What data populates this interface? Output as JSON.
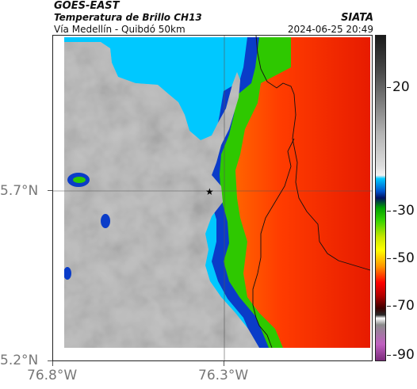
{
  "header": {
    "satellite": "GOES-EAST",
    "product": "Temperatura de Brillo CH13",
    "region": "Vía Medellín - Quibdó 50km",
    "source": "SIATA",
    "timestamp": "2024-06-25 20:49"
  },
  "axes": {
    "y_ticks": [
      "5.7°N",
      "5.2°N"
    ],
    "x_ticks": [
      "76.8°W",
      "76.3°W"
    ]
  },
  "colorbar": {
    "labels": [
      "20",
      "-30",
      "-50",
      "-70",
      "-90"
    ]
  },
  "map": {
    "marker": "star",
    "colors": {
      "cold_cloud_gray": "#c8c8c8",
      "warm_red": "#e62a00",
      "orange": "#ff9a00",
      "yellow": "#f5f000",
      "green": "#32c800",
      "blue": "#0050c8",
      "cyan": "#00c8ff"
    }
  }
}
